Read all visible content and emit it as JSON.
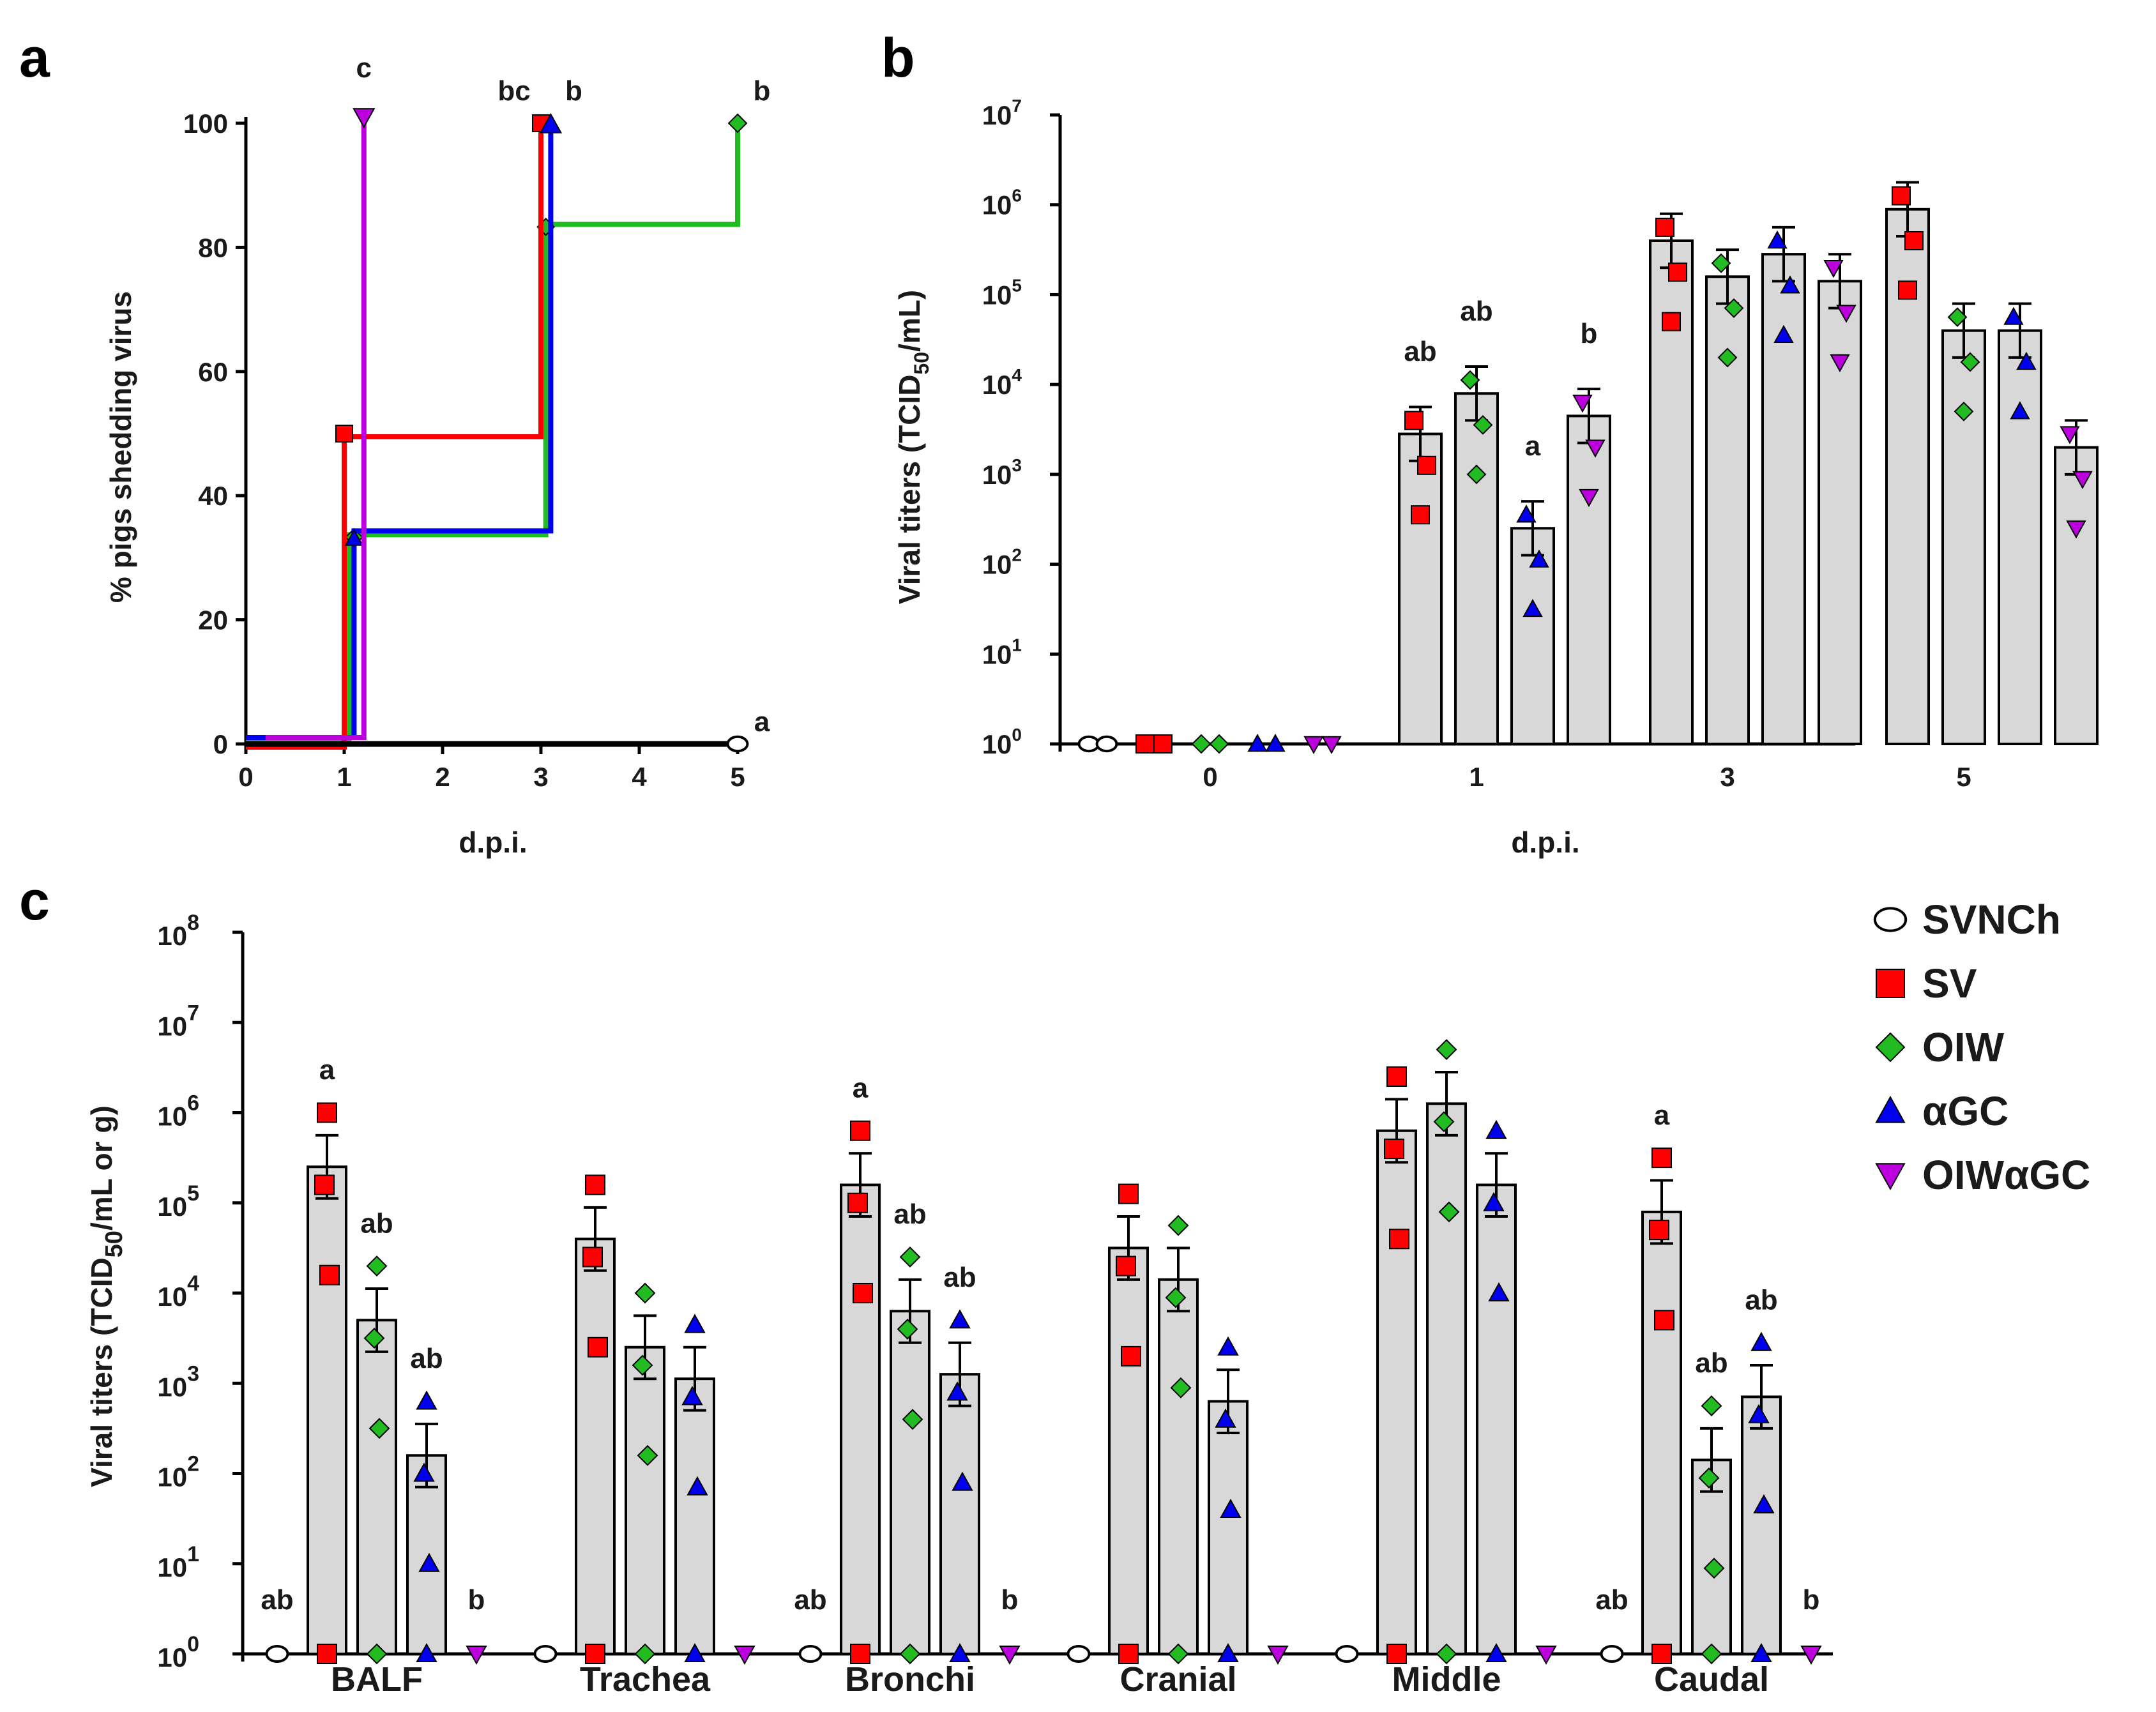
{
  "colors": {
    "SVNCh": "#000000",
    "SV": "#ff0000",
    "OIW": "#22bb22",
    "aGC": "#0000ee",
    "OIWaGC": "#bb00dd",
    "bar_fill": "#d8d8d8"
  },
  "legend": [
    {
      "key": "SVNCh",
      "label": "SVNCh",
      "shape": "circle",
      "color": "#ffffff"
    },
    {
      "key": "SV",
      "label": "SV",
      "shape": "square",
      "color": "#ff0000"
    },
    {
      "key": "OIW",
      "label": "OIW",
      "shape": "diamond",
      "color": "#22bb22"
    },
    {
      "key": "aGC",
      "label": "αGC",
      "shape": "triangle-up",
      "color": "#0000ee"
    },
    {
      "key": "OIWaGC",
      "label": "OIWαGC",
      "shape": "triangle-down",
      "color": "#bb00dd"
    }
  ],
  "chart_data": [
    {
      "panel": "a",
      "type": "line",
      "step": true,
      "xlabel": "d.p.i.",
      "ylabel": "% pigs shedding virus",
      "xlim": [
        0,
        5
      ],
      "ylim": [
        0,
        100
      ],
      "xticks": [
        "0",
        "1",
        "2",
        "3",
        "4",
        "5"
      ],
      "yticks": [
        "0",
        "20",
        "40",
        "60",
        "80",
        "100"
      ],
      "series": [
        {
          "name": "SVNCh",
          "x": [
            0,
            5
          ],
          "y": [
            0,
            0
          ],
          "end_label": "a"
        },
        {
          "name": "SV",
          "x": [
            0,
            1,
            3
          ],
          "y": [
            0,
            50,
            100
          ],
          "end_label": "bc"
        },
        {
          "name": "OIW",
          "x": [
            0,
            1.05,
            3.05,
            5
          ],
          "y": [
            0,
            33.3,
            83.3,
            100
          ],
          "end_label": "b"
        },
        {
          "name": "aGC",
          "x": [
            0,
            1.1,
            3.1
          ],
          "y": [
            0,
            33.3,
            100
          ],
          "end_label": "b"
        },
        {
          "name": "OIWaGC",
          "x": [
            0,
            1.2
          ],
          "y": [
            0,
            100
          ],
          "end_label": "c"
        }
      ]
    },
    {
      "panel": "b",
      "type": "bar",
      "log_scale": true,
      "xlabel": "d.p.i.",
      "ylabel": "Viral titers (TCID50/mL)",
      "ylim_exp": [
        0,
        7
      ],
      "categories": [
        "0",
        "1",
        "3",
        "5"
      ],
      "series": [
        {
          "name": "SVNCh",
          "means_exp": [
            0,
            null,
            null,
            null
          ]
        },
        {
          "name": "SV",
          "means_exp": [
            0,
            3.45,
            5.6,
            5.95
          ]
        },
        {
          "name": "OIW",
          "means_exp": [
            0,
            3.9,
            5.2,
            4.6
          ]
        },
        {
          "name": "aGC",
          "means_exp": [
            0,
            2.4,
            5.45,
            4.6
          ]
        },
        {
          "name": "OIWaGC",
          "means_exp": [
            0,
            3.65,
            5.15,
            3.3
          ]
        }
      ],
      "annotations": [
        {
          "category": "1",
          "series": "SV",
          "label": "ab"
        },
        {
          "category": "1",
          "series": "OIW",
          "label": "ab"
        },
        {
          "category": "1",
          "series": "aGC",
          "label": "a"
        },
        {
          "category": "1",
          "series": "OIWaGC",
          "label": "b"
        }
      ]
    },
    {
      "panel": "c",
      "type": "bar",
      "log_scale": true,
      "xlabel": "",
      "ylabel": "Viral titers (TCID50/mL or g)",
      "ylim_exp": [
        0,
        8
      ],
      "categories": [
        "BALF",
        "Trachea",
        "Bronchi",
        "Cranial",
        "Middle",
        "Caudal"
      ],
      "series": [
        {
          "name": "SVNCh",
          "means_exp": [
            0,
            0,
            0,
            0,
            0,
            0
          ]
        },
        {
          "name": "SV",
          "means_exp": [
            5.4,
            4.6,
            5.2,
            4.5,
            5.8,
            4.9
          ]
        },
        {
          "name": "OIW",
          "means_exp": [
            3.7,
            3.4,
            3.8,
            4.15,
            6.1,
            2.15
          ]
        },
        {
          "name": "aGC",
          "means_exp": [
            2.2,
            3.05,
            3.1,
            2.8,
            5.2,
            2.85
          ]
        },
        {
          "name": "OIWaGC",
          "means_exp": [
            0,
            0,
            0,
            0,
            0,
            0
          ]
        }
      ],
      "annotations": [
        {
          "category": "BALF",
          "series": "SVNCh",
          "label": "ab"
        },
        {
          "category": "BALF",
          "series": "SV",
          "label": "a"
        },
        {
          "category": "BALF",
          "series": "OIW",
          "label": "ab"
        },
        {
          "category": "BALF",
          "series": "aGC",
          "label": "ab"
        },
        {
          "category": "BALF",
          "series": "OIWaGC",
          "label": "b"
        },
        {
          "category": "Bronchi",
          "series": "SVNCh",
          "label": "ab"
        },
        {
          "category": "Bronchi",
          "series": "SV",
          "label": "a"
        },
        {
          "category": "Bronchi",
          "series": "OIW",
          "label": "ab"
        },
        {
          "category": "Bronchi",
          "series": "aGC",
          "label": "ab"
        },
        {
          "category": "Bronchi",
          "series": "OIWaGC",
          "label": "b"
        },
        {
          "category": "Caudal",
          "series": "SVNCh",
          "label": "ab"
        },
        {
          "category": "Caudal",
          "series": "SV",
          "label": "a"
        },
        {
          "category": "Caudal",
          "series": "OIW",
          "label": "ab"
        },
        {
          "category": "Caudal",
          "series": "aGC",
          "label": "ab"
        },
        {
          "category": "Caudal",
          "series": "OIWaGC",
          "label": "b"
        }
      ]
    }
  ],
  "labels": {
    "panel_a": "a",
    "panel_b": "b",
    "panel_c": "c",
    "a_xlabel": "d.p.i.",
    "a_ylabel": "% pigs shedding virus",
    "b_xlabel": "d.p.i.",
    "b_ylabel_main": "Viral titers (TCID",
    "b_ylabel_sub": "50",
    "b_ylabel_end": "/mL)",
    "c_ylabel_main": "Viral titers (TCID",
    "c_ylabel_sub": "50",
    "c_ylabel_end": "/mL or g)"
  }
}
